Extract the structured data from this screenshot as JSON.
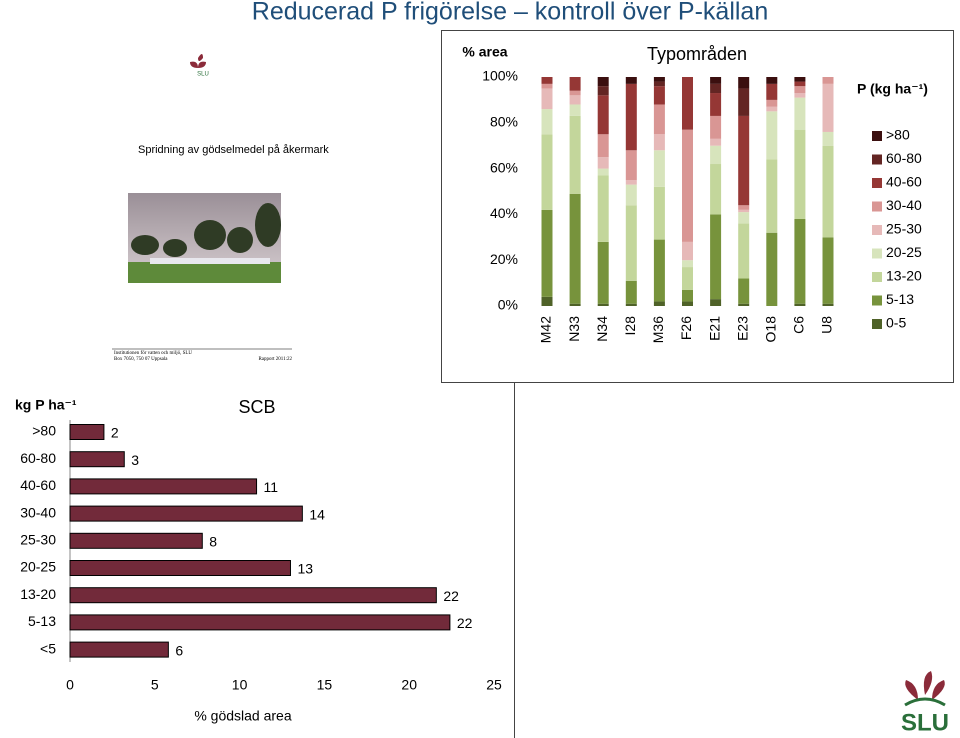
{
  "title": "Reducerad P frigörelse – kontroll över P-källan",
  "report": {
    "logo": "SLU",
    "title": "Spridning av gödselmedel på åkermark",
    "institution": "Institutionen för vatten och miljö, SLU",
    "address": "Box 7050, 750 07 Uppsala",
    "report_no": "Rapport 2011:22"
  },
  "logo_text": "SLU",
  "chart_data": [
    {
      "type": "stacked_bar",
      "title": "Typområden",
      "ylabel": "% area",
      "legend_title": "P (kg ha⁻¹)",
      "legend": "right",
      "categories": [
        "M42",
        "N33",
        "N34",
        "I28",
        "M36",
        "F26",
        "E21",
        "E23",
        "O18",
        "C6",
        "U8"
      ],
      "ylim": [
        0,
        100
      ],
      "yticks": [
        {
          "value": 0,
          "label": "0%"
        },
        {
          "value": 20,
          "label": "20%"
        },
        {
          "value": 40,
          "label": "40%"
        },
        {
          "value": 60,
          "label": "60%"
        },
        {
          "value": 80,
          "label": "80%"
        },
        {
          "value": 100,
          "label": "100%"
        }
      ],
      "series": [
        {
          "name": "0-5",
          "color": "#4f6228",
          "values": [
            4,
            1,
            1,
            1,
            2,
            2,
            3,
            1,
            0,
            1,
            1
          ]
        },
        {
          "name": "5-13",
          "color": "#77933c",
          "values": [
            38,
            48,
            27,
            10,
            27,
            5,
            37,
            11,
            32,
            37,
            29
          ]
        },
        {
          "name": "13-20",
          "color": "#c3d69b",
          "values": [
            33,
            34,
            29,
            33,
            23,
            10,
            22,
            24,
            32,
            39,
            40
          ]
        },
        {
          "name": "20-25",
          "color": "#d7e4bc",
          "values": [
            11,
            5,
            3,
            9,
            16,
            3,
            8,
            5,
            21,
            14,
            6
          ]
        },
        {
          "name": "25-30",
          "color": "#e6b9b8",
          "values": [
            9,
            4,
            5,
            2,
            7,
            8,
            3,
            1,
            2,
            2,
            21
          ]
        },
        {
          "name": "30-40",
          "color": "#d99694",
          "values": [
            2,
            2,
            10,
            13,
            13,
            49,
            10,
            2,
            3,
            3,
            3
          ]
        },
        {
          "name": "40-60",
          "color": "#953735",
          "values": [
            3,
            6,
            17,
            29,
            8,
            23,
            10,
            39,
            7,
            2,
            0
          ]
        },
        {
          "name": "60-80",
          "color": "#632523",
          "values": [
            0,
            0,
            4,
            0,
            2,
            0,
            4,
            12,
            0,
            0,
            0
          ]
        },
        {
          "name": ">80",
          "color": "#3b0f0f",
          "values": [
            0,
            0,
            4,
            3,
            2,
            0,
            3,
            5,
            3,
            2,
            0
          ]
        }
      ]
    },
    {
      "type": "hbar",
      "title": "SCB",
      "ylabel": "kg P ha⁻¹",
      "xlabel": "% gödslad area",
      "color": "#722a3a",
      "categories": [
        ">80",
        "60-80",
        "40-60",
        "30-40",
        "25-30",
        "20-25",
        "13-20",
        "5-13",
        "<5"
      ],
      "values": [
        2,
        3.2,
        11,
        13.7,
        7.8,
        13,
        21.6,
        22.4,
        5.8
      ],
      "value_labels": [
        "2",
        "3",
        "11",
        "14",
        "8",
        "13",
        "22",
        "22",
        "6"
      ],
      "xlim": [
        0,
        25
      ],
      "xticks": [
        0,
        5,
        10,
        15,
        20,
        25
      ]
    }
  ]
}
